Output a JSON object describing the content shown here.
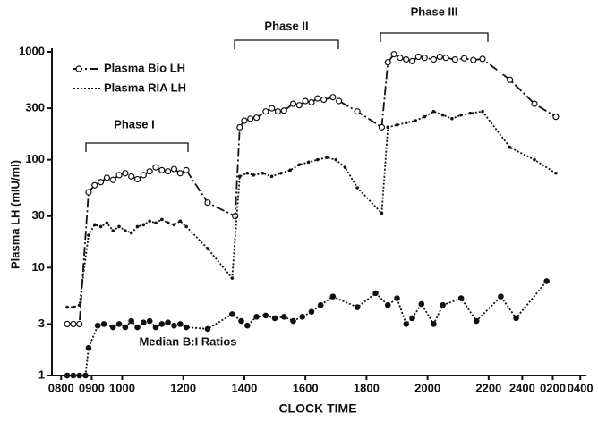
{
  "chart_data": {
    "type": "line",
    "xlabel": "CLOCK TIME",
    "ylabel": "Plasma LH (mIU/ml)",
    "log_y": true,
    "ylim": [
      1,
      1000
    ],
    "yticks": [
      1,
      3,
      10,
      30,
      100,
      300,
      1000
    ],
    "xlim": [
      -0.3,
      17.2
    ],
    "xticks": [
      {
        "value": 0,
        "label": "0800"
      },
      {
        "value": 1,
        "label": "0900"
      },
      {
        "value": 2,
        "label": "1000"
      },
      {
        "value": 4,
        "label": "1200"
      },
      {
        "value": 6,
        "label": "1400"
      },
      {
        "value": 8,
        "label": "1600"
      },
      {
        "value": 10,
        "label": "1800"
      },
      {
        "value": 12,
        "label": "2000"
      },
      {
        "value": 14,
        "label": "2200"
      },
      {
        "value": 15.1,
        "label": "2400"
      },
      {
        "value": 16.1,
        "label": "0200"
      },
      {
        "value": 17,
        "label": "0400"
      }
    ],
    "annotations": [
      "Phase I",
      "Phase II",
      "Phase III",
      "Median B:I Ratios"
    ],
    "series": [
      {
        "name": "Plasma Bio LH",
        "color": "#111111",
        "marker": "open",
        "dash": "10 3 2 3",
        "x": [
          0.2,
          0.4,
          0.6,
          0.9,
          1.1,
          1.3,
          1.5,
          1.7,
          1.9,
          2.1,
          2.3,
          2.5,
          2.7,
          2.9,
          3.1,
          3.3,
          3.5,
          3.7,
          3.9,
          4.1,
          4.8,
          5.7,
          5.85,
          6.0,
          6.2,
          6.4,
          6.7,
          6.9,
          7.1,
          7.3,
          7.6,
          7.8,
          8.0,
          8.2,
          8.4,
          8.6,
          8.9,
          9.1,
          9.7,
          10.5,
          10.7,
          10.9,
          11.1,
          11.3,
          11.5,
          11.7,
          11.9,
          12.2,
          12.4,
          12.6,
          12.9,
          13.2,
          13.5,
          13.8,
          14.7,
          15.5,
          16.2
        ],
        "values": [
          3,
          3,
          3,
          50,
          58,
          62,
          68,
          65,
          72,
          75,
          70,
          66,
          72,
          78,
          85,
          80,
          78,
          82,
          75,
          80,
          40,
          30,
          200,
          230,
          240,
          245,
          280,
          300,
          280,
          285,
          330,
          320,
          350,
          340,
          370,
          360,
          380,
          350,
          280,
          200,
          800,
          950,
          880,
          850,
          820,
          900,
          880,
          850,
          900,
          880,
          850,
          870,
          840,
          860,
          550,
          330,
          250
        ]
      },
      {
        "name": "Plasma RIA LH",
        "color": "#111111",
        "marker": "dot",
        "dash": "2 2",
        "x": [
          0.2,
          0.4,
          0.6,
          0.9,
          1.1,
          1.3,
          1.5,
          1.7,
          1.9,
          2.1,
          2.3,
          2.5,
          2.7,
          2.9,
          3.1,
          3.3,
          3.5,
          3.7,
          3.9,
          4.1,
          4.8,
          5.6,
          5.85,
          6.1,
          6.3,
          6.6,
          6.9,
          7.2,
          7.5,
          7.8,
          8.1,
          8.4,
          8.7,
          9.0,
          9.3,
          9.7,
          10.5,
          10.7,
          11.0,
          11.3,
          11.6,
          11.9,
          12.2,
          12.5,
          12.8,
          13.1,
          13.4,
          13.8,
          14.7,
          15.5,
          16.2
        ],
        "values": [
          4.3,
          4.3,
          4.5,
          20,
          25,
          24,
          26,
          22,
          24,
          22,
          21,
          24,
          25,
          27,
          26,
          28,
          26,
          25,
          27,
          24,
          15,
          8,
          70,
          75,
          72,
          75,
          70,
          75,
          80,
          90,
          95,
          100,
          105,
          100,
          85,
          55,
          32,
          200,
          210,
          220,
          230,
          250,
          280,
          260,
          240,
          260,
          270,
          280,
          130,
          100,
          75
        ]
      },
      {
        "name": "Median B:I Ratios",
        "color": "#111111",
        "marker": "filled",
        "dash": "2 2",
        "x": [
          0.2,
          0.4,
          0.6,
          0.8,
          0.9,
          1.2,
          1.4,
          1.7,
          1.9,
          2.1,
          2.3,
          2.5,
          2.7,
          2.9,
          3.1,
          3.3,
          3.5,
          3.7,
          3.9,
          4.1,
          4.8,
          5.6,
          5.9,
          6.1,
          6.4,
          6.7,
          7.0,
          7.3,
          7.6,
          7.9,
          8.2,
          8.5,
          8.9,
          9.7,
          10.3,
          10.7,
          11.0,
          11.3,
          11.5,
          11.8,
          12.2,
          12.5,
          13.1,
          13.6,
          14.4,
          14.9,
          15.9
        ],
        "values": [
          1,
          1,
          1,
          1,
          1.8,
          2.9,
          3,
          2.8,
          3,
          2.8,
          3.2,
          2.8,
          3.1,
          3.2,
          2.8,
          3,
          3.1,
          2.9,
          3,
          2.8,
          2.7,
          3.7,
          3.2,
          2.9,
          3.5,
          3.6,
          3.4,
          3.5,
          3.2,
          3.5,
          3.9,
          4.5,
          5.4,
          4.3,
          5.8,
          4.5,
          5.2,
          3,
          3.4,
          4.6,
          3,
          4.5,
          5.2,
          3.2,
          5.4,
          3.4,
          7.5
        ]
      }
    ]
  }
}
